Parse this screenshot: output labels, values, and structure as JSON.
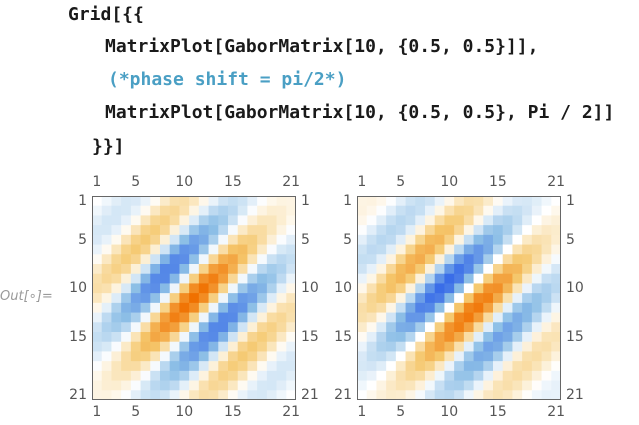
{
  "code": {
    "line1": "Grid[{{",
    "line2": "MatrixPlot[GaborMatrix[10, {0.5, 0.5}]],",
    "line3": "(*phase shift = pi/2*)",
    "line4": "MatrixPlot[GaborMatrix[10, {0.5, 0.5}, Pi / 2]]",
    "line5": "}}]"
  },
  "output": {
    "label": "Out[∘]="
  },
  "plots": [
    {
      "ticks": [
        "1",
        "5",
        "10",
        "15",
        "21"
      ],
      "phase": "cos",
      "n": 21
    },
    {
      "ticks": [
        "1",
        "5",
        "10",
        "15",
        "21"
      ],
      "phase": "sin",
      "n": 21
    }
  ],
  "colors": {
    "positive": "#f07000",
    "negative": "#2f62e8",
    "zero": "#ffffff",
    "frame": "#666666"
  }
}
